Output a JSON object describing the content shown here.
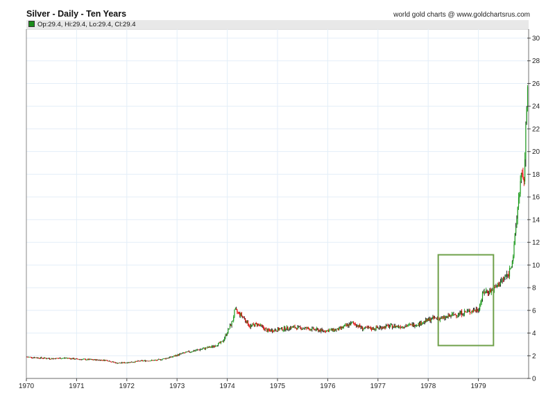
{
  "header": {
    "title": "Silver - Daily - Ten Years",
    "credit": "world gold charts @ www.goldchartsrus.com",
    "legend": "Op:29.4, Hi:29.4, Lo:29.4, Cl:29.4",
    "legend_color": "#1a8c1a"
  },
  "chart_data": {
    "type": "candlestick",
    "title": "Silver - Daily - Ten Years",
    "xlabel": "",
    "ylabel": "",
    "x_ticks": [
      "1970",
      "1971",
      "1972",
      "1973",
      "1974",
      "1975",
      "1976",
      "1977",
      "1978",
      "1979"
    ],
    "y_ticks": [
      0,
      2,
      4,
      6,
      8,
      10,
      12,
      14,
      16,
      18,
      20,
      22,
      24,
      26,
      28,
      30
    ],
    "ylim": [
      0,
      30.8
    ],
    "xlim": [
      1970.0,
      1980.0
    ],
    "grid": true,
    "y_axis_position": "right",
    "last_bar": {
      "open": 29.4,
      "high": 29.4,
      "low": 29.4,
      "close": 29.4
    },
    "series": [
      {
        "name": "Silver price (approx. closes)",
        "x": [
          1970.0,
          1970.3,
          1970.5,
          1970.8,
          1971.0,
          1971.3,
          1971.6,
          1971.8,
          1972.0,
          1972.3,
          1972.6,
          1972.9,
          1973.1,
          1973.4,
          1973.7,
          1973.9,
          1974.1,
          1974.15,
          1974.3,
          1974.45,
          1974.6,
          1974.8,
          1975.0,
          1975.3,
          1975.6,
          1975.9,
          1976.2,
          1976.5,
          1976.7,
          1976.9,
          1977.2,
          1977.5,
          1977.8,
          1978.1,
          1978.3,
          1978.5,
          1978.8,
          1979.0,
          1979.1,
          1979.3,
          1979.5,
          1979.6,
          1979.7,
          1979.75,
          1979.8,
          1979.85,
          1979.9,
          1979.93,
          1979.96,
          1980.0
        ],
        "values": [
          1.9,
          1.8,
          1.75,
          1.8,
          1.7,
          1.65,
          1.6,
          1.35,
          1.4,
          1.55,
          1.6,
          1.9,
          2.2,
          2.5,
          2.8,
          3.2,
          5.0,
          6.0,
          5.5,
          4.6,
          4.8,
          4.2,
          4.3,
          4.5,
          4.4,
          4.2,
          4.3,
          4.9,
          4.4,
          4.4,
          4.6,
          4.6,
          4.8,
          5.3,
          5.3,
          5.6,
          5.9,
          6.1,
          7.6,
          7.8,
          8.8,
          9.2,
          11.0,
          13.5,
          16.0,
          17.8,
          17.0,
          20.0,
          24.0,
          29.4
        ]
      }
    ],
    "annotations": [
      {
        "type": "rectangle",
        "color": "#6fa04a",
        "x_from": 1978.2,
        "x_to": 1979.3,
        "y_from": 2.9,
        "y_to": 10.9
      }
    ]
  },
  "colors": {
    "up": "#1a9a1a",
    "down": "#e00000",
    "grid": "#e3eef8",
    "axis": "#888888",
    "annotation": "#6fa04a"
  }
}
